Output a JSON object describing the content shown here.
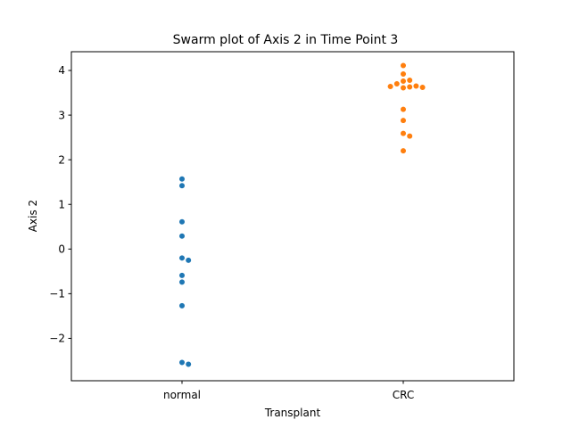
{
  "chart_data": {
    "type": "scatter",
    "title": "Swarm plot of Axis 2 in Time Point 3",
    "xlabel": "Transplant",
    "ylabel": "Axis 2",
    "categories": [
      "normal",
      "CRC"
    ],
    "ylim": [
      -2.95,
      4.42
    ],
    "yticks": [
      -2,
      -1,
      0,
      1,
      2,
      3,
      4
    ],
    "ytick_labels": [
      "−2",
      "−1",
      "0",
      "1",
      "2",
      "3",
      "4"
    ],
    "grid": false,
    "series": [
      {
        "category": "normal",
        "color": "#1f77b4",
        "values": [
          1.57,
          1.42,
          0.61,
          0.29,
          -0.2,
          -0.25,
          -0.59,
          -0.74,
          -1.27,
          -2.54,
          -2.58
        ]
      },
      {
        "category": "CRC",
        "color": "#ff7f0e",
        "values": [
          4.11,
          3.92,
          3.78,
          3.76,
          3.7,
          3.65,
          3.64,
          3.63,
          3.62,
          3.61,
          3.13,
          2.88,
          2.59,
          2.53,
          2.2
        ]
      }
    ]
  }
}
